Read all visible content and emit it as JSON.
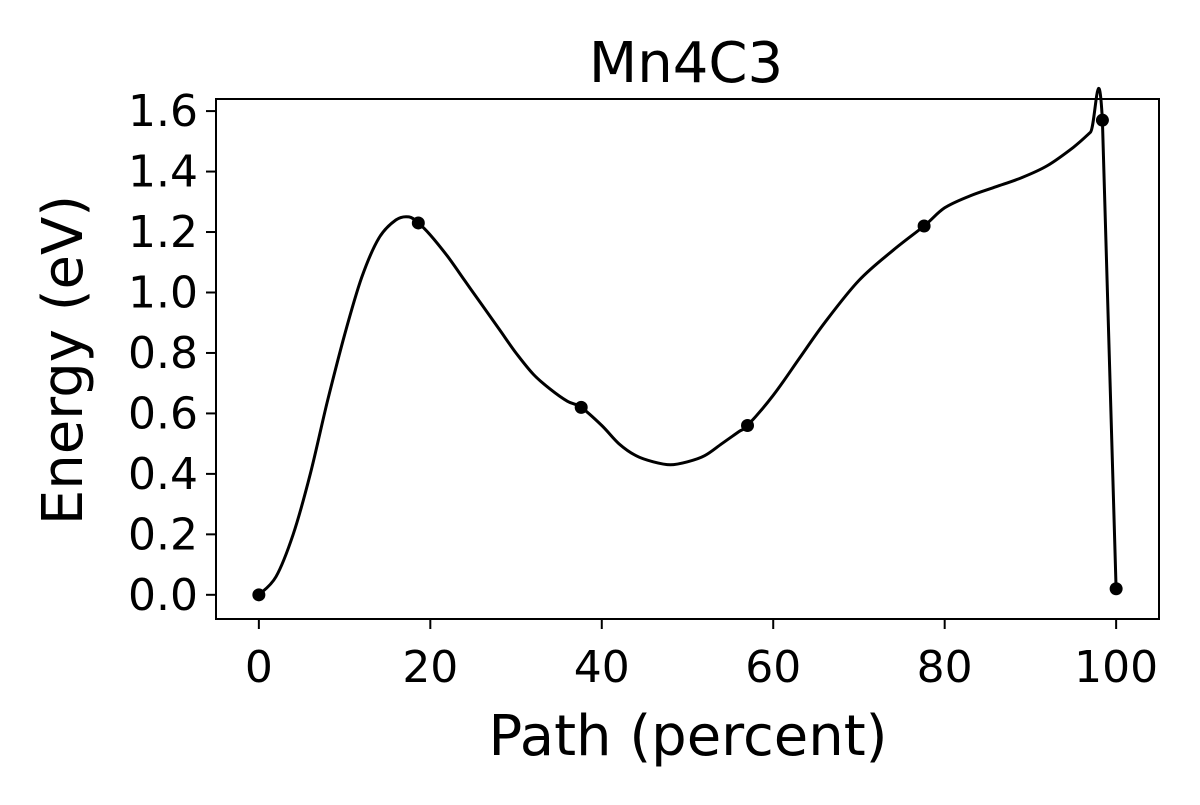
{
  "chart_data": {
    "type": "line",
    "title": "Mn4C3",
    "xlabel": "Path (percent)",
    "ylabel": "Energy (eV)",
    "xlim": [
      -5,
      105
    ],
    "ylim": [
      -0.08,
      1.64
    ],
    "xticks": [
      0,
      20,
      40,
      60,
      80,
      100
    ],
    "xtick_labels": [
      "0",
      "20",
      "40",
      "60",
      "80",
      "100"
    ],
    "yticks": [
      0.0,
      0.2,
      0.4,
      0.6,
      0.8,
      1.0,
      1.2,
      1.4,
      1.6
    ],
    "ytick_labels": [
      "0.0",
      "0.2",
      "0.4",
      "0.6",
      "0.8",
      "1.0",
      "1.2",
      "1.4",
      "1.6"
    ],
    "grid": false,
    "legend": "none",
    "colors": {
      "line": "#000000",
      "markers": "#000000"
    },
    "series": [
      {
        "type": "scatter",
        "x": [
          0,
          18.6,
          37.6,
          57.0,
          77.6,
          98.4,
          100
        ],
        "y": [
          0.0,
          1.23,
          0.62,
          0.56,
          1.22,
          1.57,
          0.02
        ]
      },
      {
        "type": "line",
        "x": [
          0,
          2,
          4,
          6,
          8,
          10,
          12,
          14,
          16,
          17.5,
          18.6,
          20,
          22,
          24,
          26,
          28,
          30,
          32,
          34,
          36,
          37.6,
          40,
          42,
          44,
          46,
          48,
          50,
          52,
          54,
          56,
          57.0,
          60,
          63,
          66,
          70,
          74,
          77.6,
          80,
          83,
          86,
          89,
          92,
          95,
          97,
          98.4,
          100
        ],
        "y": [
          0.0,
          0.06,
          0.2,
          0.4,
          0.64,
          0.86,
          1.05,
          1.18,
          1.24,
          1.25,
          1.23,
          1.19,
          1.12,
          1.04,
          0.96,
          0.88,
          0.8,
          0.73,
          0.68,
          0.64,
          0.62,
          0.56,
          0.5,
          0.46,
          0.44,
          0.43,
          0.44,
          0.46,
          0.5,
          0.54,
          0.56,
          0.66,
          0.78,
          0.9,
          1.04,
          1.14,
          1.22,
          1.28,
          1.32,
          1.35,
          1.38,
          1.42,
          1.48,
          1.53,
          1.57,
          0.02
        ]
      }
    ]
  }
}
